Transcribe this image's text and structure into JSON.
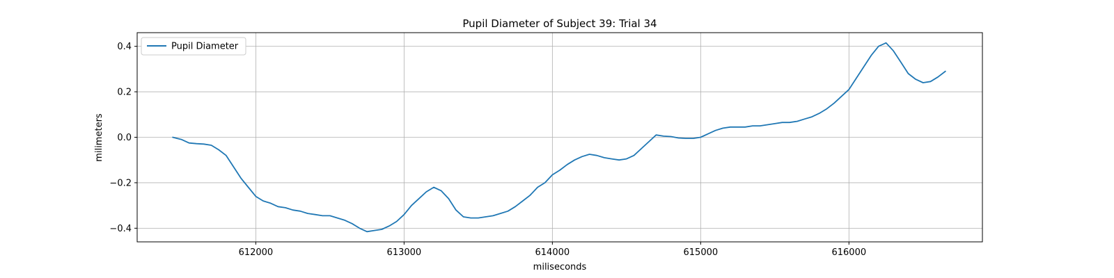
{
  "chart_data": {
    "type": "line",
    "title": "Pupil Diameter of Subject 39: Trial 34",
    "xlabel": "miliseconds",
    "ylabel": "milimeters",
    "xlim": [
      611200,
      616900
    ],
    "ylim": [
      -0.46,
      0.46
    ],
    "xticks": [
      612000,
      613000,
      614000,
      615000,
      616000
    ],
    "yticks": [
      -0.4,
      -0.2,
      0.0,
      0.2,
      0.4
    ],
    "xtick_labels": [
      "612000",
      "613000",
      "614000",
      "615000",
      "616000"
    ],
    "ytick_labels": [
      "−0.4",
      "−0.2",
      "0.0",
      "0.2",
      "0.4"
    ],
    "grid": true,
    "legend": {
      "position": "top-left",
      "entries": [
        "Pupil Diameter"
      ]
    },
    "series": [
      {
        "name": "Pupil Diameter",
        "color": "#1f77b4",
        "x": [
          611440,
          611500,
          611550,
          611600,
          611650,
          611700,
          611750,
          611800,
          611850,
          611900,
          611950,
          612000,
          612050,
          612100,
          612150,
          612200,
          612250,
          612300,
          612350,
          612400,
          612450,
          612500,
          612550,
          612600,
          612650,
          612700,
          612750,
          612800,
          612850,
          612900,
          612950,
          613000,
          613050,
          613100,
          613150,
          613200,
          613250,
          613300,
          613350,
          613400,
          613450,
          613500,
          613550,
          613600,
          613650,
          613700,
          613750,
          613800,
          613850,
          613900,
          613950,
          614000,
          614050,
          614100,
          614150,
          614200,
          614250,
          614300,
          614350,
          614400,
          614450,
          614500,
          614550,
          614600,
          614650,
          614700,
          614750,
          614800,
          614850,
          614900,
          614950,
          615000,
          615050,
          615100,
          615150,
          615200,
          615250,
          615300,
          615350,
          615400,
          615450,
          615500,
          615550,
          615600,
          615650,
          615700,
          615750,
          615800,
          615850,
          615900,
          615950,
          616000,
          616050,
          616100,
          616150,
          616200,
          616250,
          616300,
          616350,
          616400,
          616450,
          616500,
          616550,
          616600,
          616650
        ],
        "values": [
          0.0,
          -0.01,
          -0.025,
          -0.028,
          -0.03,
          -0.035,
          -0.055,
          -0.08,
          -0.13,
          -0.18,
          -0.22,
          -0.26,
          -0.28,
          -0.29,
          -0.305,
          -0.31,
          -0.32,
          -0.325,
          -0.335,
          -0.34,
          -0.345,
          -0.345,
          -0.355,
          -0.365,
          -0.38,
          -0.4,
          -0.415,
          -0.41,
          -0.405,
          -0.39,
          -0.37,
          -0.34,
          -0.3,
          -0.27,
          -0.24,
          -0.22,
          -0.235,
          -0.27,
          -0.32,
          -0.35,
          -0.355,
          -0.355,
          -0.35,
          -0.345,
          -0.335,
          -0.325,
          -0.305,
          -0.28,
          -0.255,
          -0.22,
          -0.2,
          -0.165,
          -0.145,
          -0.12,
          -0.1,
          -0.085,
          -0.075,
          -0.08,
          -0.09,
          -0.095,
          -0.1,
          -0.095,
          -0.08,
          -0.05,
          -0.02,
          0.01,
          0.005,
          0.003,
          -0.003,
          -0.005,
          -0.005,
          0.0,
          0.015,
          0.03,
          0.04,
          0.045,
          0.045,
          0.045,
          0.05,
          0.05,
          0.055,
          0.06,
          0.065,
          0.065,
          0.07,
          0.08,
          0.09,
          0.105,
          0.125,
          0.15,
          0.18,
          0.21,
          0.26,
          0.31,
          0.36,
          0.4,
          0.415,
          0.38,
          0.33,
          0.28,
          0.255,
          0.24,
          0.245,
          0.265,
          0.29
        ]
      }
    ]
  }
}
